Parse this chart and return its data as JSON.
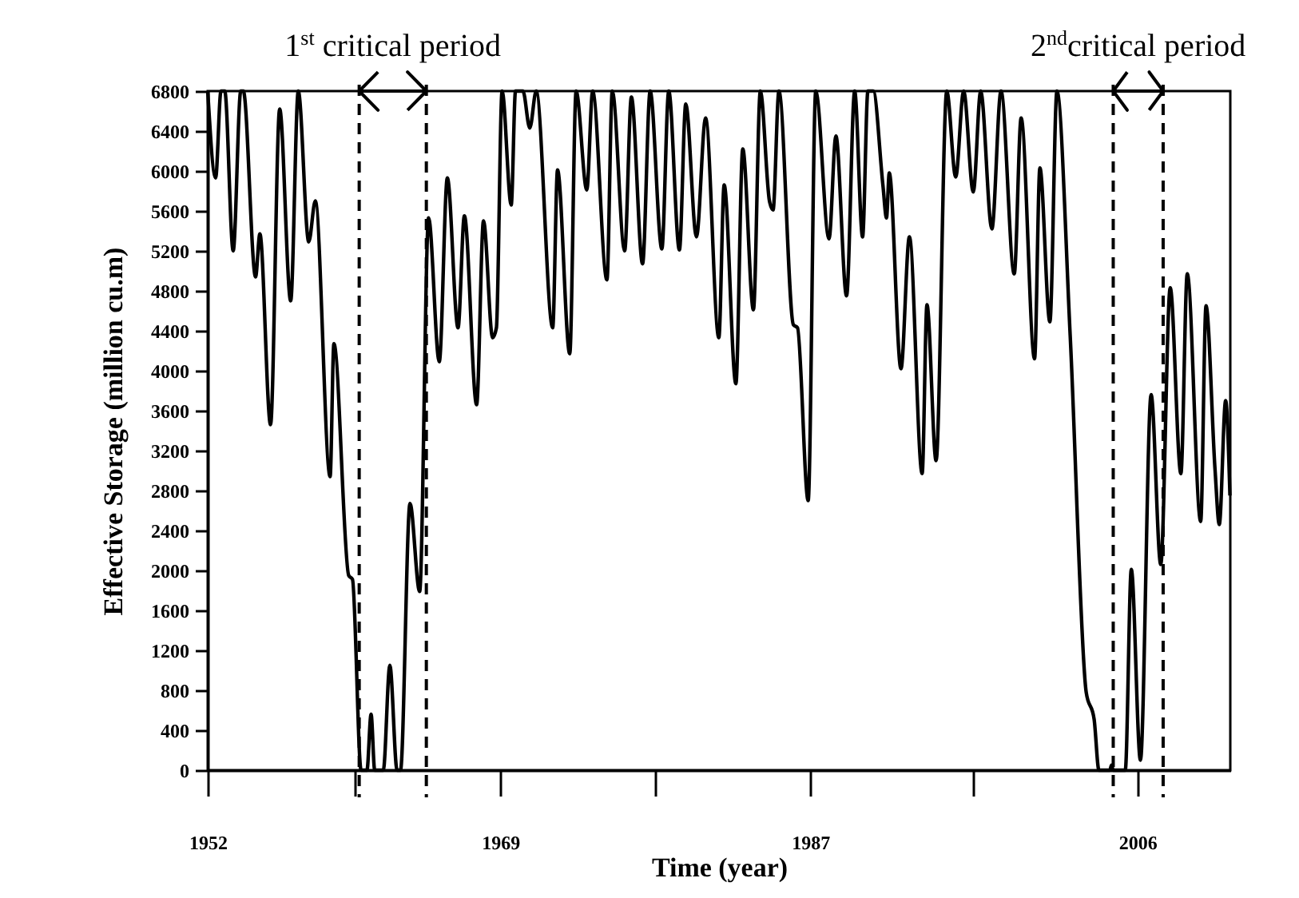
{
  "chart_data": {
    "type": "line",
    "xlabel": "Time (year)",
    "ylabel": "Effective Storage (million cu.m)",
    "xlim": [
      1952,
      2011.4
    ],
    "xticks": [
      1952,
      {
        "value": 1960.5,
        "label": null
      },
      1969,
      {
        "value": 1978,
        "label": null
      },
      1987,
      {
        "value": 1996.5,
        "label": null
      },
      2006
    ],
    "ylim": [
      0,
      6800
    ],
    "yticks": [
      0,
      400,
      800,
      1200,
      1600,
      2000,
      2400,
      2800,
      3200,
      3600,
      4000,
      4400,
      4800,
      5200,
      5600,
      6000,
      6400,
      6800
    ],
    "x": [
      1952.0,
      1952.46,
      1952.77,
      1952.99,
      1953.48,
      1953.92,
      1954.07,
      1954.78,
      1955.03,
      1955.65,
      1956.18,
      1956.82,
      1957.26,
      1957.87,
      1958.25,
      1959.11,
      1959.33,
      1960.19,
      1960.41,
      1960.91,
      1961.25,
      1961.49,
      1961.7,
      1962.2,
      1962.58,
      1963.0,
      1963.2,
      1963.75,
      1964.31,
      1964.83,
      1965.45,
      1965.92,
      1966.54,
      1966.91,
      1967.62,
      1968.02,
      1968.55,
      1968.77,
      1969.1,
      1969.63,
      1969.88,
      1970.31,
      1970.71,
      1971.08,
      1972.04,
      1972.32,
      1973.03,
      1973.4,
      1974.02,
      1974.36,
      1975.19,
      1975.5,
      1976.22,
      1976.61,
      1977.26,
      1977.7,
      1978.38,
      1978.78,
      1979.4,
      1979.77,
      1980.39,
      1980.92,
      1981.69,
      1982.0,
      1982.68,
      1983.08,
      1983.7,
      1984.1,
      1984.63,
      1984.84,
      1985.18,
      1986.02,
      1986.26,
      1986.88,
      1987.32,
      1988.09,
      1988.49,
      1989.11,
      1989.58,
      1990.04,
      1990.35,
      1990.66,
      1991.22,
      1991.43,
      1991.59,
      1992.27,
      1992.76,
      1993.5,
      1993.78,
      1994.31,
      1994.93,
      1995.45,
      1995.91,
      1996.47,
      1996.9,
      1997.55,
      1998.08,
      1998.85,
      1999.25,
      2000.03,
      2000.34,
      2000.92,
      2001.33,
      2002.1,
      2003.03,
      2003.49,
      2003.77,
      2004.4,
      2004.5,
      2004.6,
      2005.3,
      2005.65,
      2006.18,
      2006.8,
      2007.36,
      2007.91,
      2008.53,
      2008.9,
      2009.68,
      2009.99,
      2010.51,
      2010.76,
      2011.13,
      2011.38
    ],
    "series": [
      {
        "color": "#000000",
        "values": [
          6800,
          5930,
          6800,
          6800,
          5200,
          6800,
          6800,
          4940,
          5370,
          3460,
          6620,
          4700,
          6800,
          5290,
          5700,
          2940,
          4270,
          1950,
          1910,
          0,
          0,
          560,
          0,
          0,
          1050,
          0,
          0,
          2670,
          1790,
          5530,
          4090,
          5930,
          4430,
          5550,
          3660,
          5500,
          4330,
          4430,
          6800,
          5660,
          6800,
          6800,
          6430,
          6800,
          4430,
          6010,
          4170,
          6800,
          5810,
          6800,
          4910,
          6800,
          5200,
          6740,
          5070,
          6800,
          5220,
          6800,
          5210,
          6670,
          5340,
          6530,
          4330,
          5860,
          3870,
          6220,
          4610,
          6800,
          5700,
          5610,
          6800,
          4460,
          4430,
          2700,
          6800,
          5320,
          6350,
          4750,
          6800,
          5340,
          6800,
          6800,
          5860,
          5530,
          5980,
          4020,
          5340,
          2970,
          4660,
          3100,
          6800,
          5940,
          6800,
          5790,
          6800,
          5420,
          6800,
          4970,
          6530,
          4120,
          6030,
          4490,
          6800,
          4350,
          780,
          510,
          0,
          0,
          50,
          0,
          0,
          2010,
          100,
          3760,
          2060,
          4830,
          2970,
          4970,
          2490,
          4650,
          3020,
          2460,
          3700,
          2750
        ]
      }
    ],
    "ref_lines": [
      {
        "axis": "x",
        "value": 1960.8,
        "color": "#000000",
        "line_style": "dashed"
      },
      {
        "axis": "x",
        "value": 1964.7,
        "color": "#000000",
        "line_style": "dashed"
      },
      {
        "axis": "x",
        "value": 2004.6,
        "color": "#000000",
        "line_style": "dashed"
      },
      {
        "axis": "x",
        "value": 2007.5,
        "color": "#000000",
        "line_style": "dashed"
      }
    ],
    "annotations": [
      {
        "text": "1$^{st}$ critical period",
        "x": 1962.75,
        "y": 6800
      },
      {
        "text": "2$^{nd}$critical period",
        "x": 2006.05,
        "y": 6800
      }
    ]
  }
}
